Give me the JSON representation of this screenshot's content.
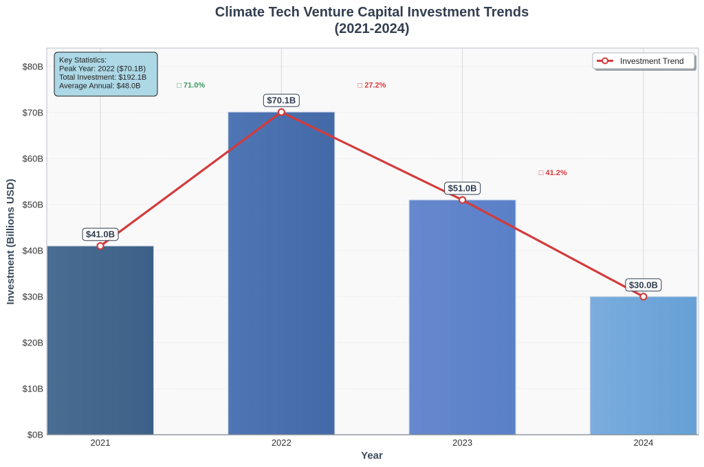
{
  "chart_data": {
    "type": "bar",
    "title": [
      "Climate Tech Venture Capital Investment Trends",
      "(2021-2024)"
    ],
    "xlabel": "Year",
    "ylabel": "Investment (Billions USD)",
    "categories": [
      "2021",
      "2022",
      "2023",
      "2024"
    ],
    "values": [
      41.0,
      70.1,
      51.0,
      30.0
    ],
    "ylim": [
      0,
      84
    ],
    "yticks": [
      0,
      10,
      20,
      30,
      40,
      50,
      60,
      70,
      80
    ],
    "ytick_labels": [
      "$0B",
      "$10B",
      "$20B",
      "$30B",
      "$40B",
      "$50B",
      "$60B",
      "$70B",
      "$80B"
    ],
    "bar_labels": [
      "$41.0B",
      "$70.1B",
      "$51.0B",
      "$30.0B"
    ],
    "bar_colors": [
      "#446a92",
      "#4a6fad",
      "#5f86cc",
      "#6fa6da"
    ],
    "bar_gradients": [
      [
        "#4a6e92",
        "#3c6087"
      ],
      [
        "#4f75b5",
        "#4469a7"
      ],
      [
        "#6688cd",
        "#5a80c8"
      ],
      [
        "#7aaddd",
        "#66a0d6"
      ]
    ],
    "line_series": {
      "name": "Investment Trend",
      "values": [
        41.0,
        70.1,
        51.0,
        30.0
      ],
      "color": "#d33b3b"
    },
    "changes": [
      {
        "text": "□ 71.0%",
        "color": "#3a9a5c",
        "between": [
          0,
          1
        ],
        "y": 76
      },
      {
        "text": "□ 27.2%",
        "color": "#d83a3a",
        "between": [
          1,
          2
        ],
        "y": 76
      },
      {
        "text": "□ 41.2%",
        "color": "#d83a3a",
        "between": [
          2,
          3
        ],
        "y": 57
      }
    ],
    "stats_box": {
      "lines": [
        "Key Statistics:",
        "Peak Year: 2022 ($70.1B)",
        "Total Investment: $192.1B",
        "Average Annual: $48.0B"
      ],
      "placement": "top-left",
      "background": "#add8e6"
    },
    "legend": {
      "placement": "top-right",
      "entries": [
        "Investment Trend"
      ]
    },
    "grid": true
  }
}
